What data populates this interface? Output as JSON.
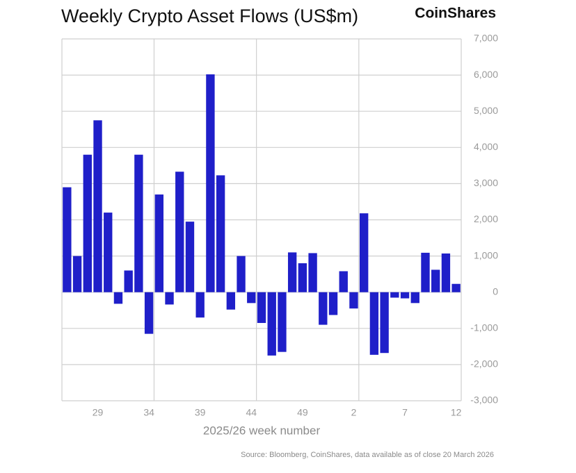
{
  "chart_data": {
    "type": "bar",
    "title": "Weekly Crypto Asset Flows (US$m)",
    "brand": "CoinShares",
    "x_label": "2025/26 week number",
    "source": "Source: Bloomberg, CoinShares, data available as of close 20 March 2026",
    "categories": [
      null,
      null,
      null,
      "29",
      null,
      null,
      null,
      null,
      "34",
      null,
      null,
      null,
      null,
      "39",
      null,
      null,
      null,
      null,
      "44",
      null,
      null,
      null,
      null,
      "49",
      null,
      null,
      null,
      null,
      "2",
      null,
      null,
      null,
      null,
      "7",
      null,
      null,
      null,
      null,
      "12"
    ],
    "values": [
      2900,
      1000,
      3800,
      4750,
      2200,
      -320,
      600,
      3800,
      -1150,
      2700,
      -340,
      3330,
      1950,
      -700,
      6020,
      3230,
      -480,
      1000,
      -300,
      -850,
      -1750,
      -1650,
      1100,
      800,
      1080,
      -900,
      -630,
      580,
      -450,
      2180,
      -1730,
      -1680,
      -150,
      -170,
      -300,
      1090,
      620,
      1070,
      230
    ],
    "color": "#1f1fc9",
    "ylim": [
      -3000,
      7000
    ],
    "yticks": [
      {
        "value": -3000,
        "label": "-3,000"
      },
      {
        "value": -2000,
        "label": "-2,000"
      },
      {
        "value": -1000,
        "label": "-1,000"
      },
      0,
      {
        "value": 1000,
        "label": "1,000"
      },
      {
        "value": 2000,
        "label": "2,000"
      },
      {
        "value": 3000,
        "label": "3,000"
      },
      {
        "value": 4000,
        "label": "4,000"
      },
      {
        "value": 5000,
        "label": "5,000"
      },
      {
        "value": 6000,
        "label": "6,000"
      },
      {
        "value": 7000,
        "label": "7,000"
      }
    ],
    "grid": true
  }
}
